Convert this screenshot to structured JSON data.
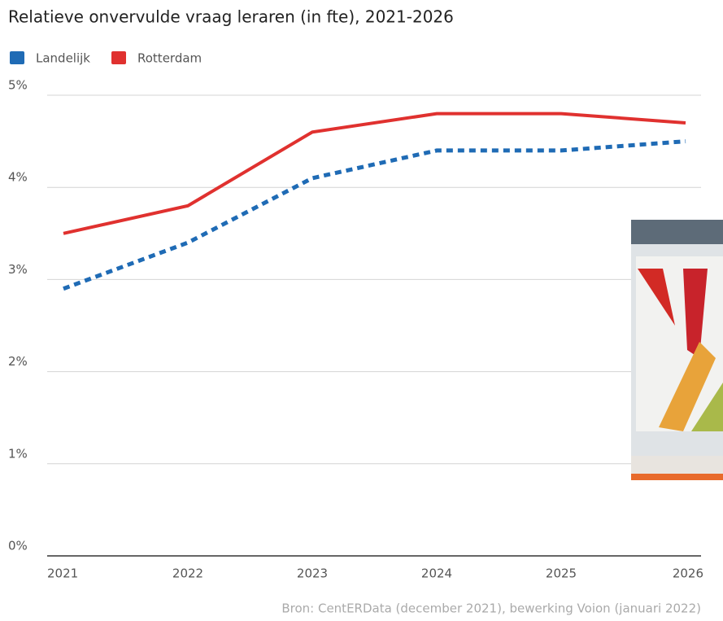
{
  "chart_data": {
    "type": "line",
    "title": "Relatieve onvervulde vraag leraren (in fte), 2021-2026",
    "categories": [
      "2021",
      "2022",
      "2023",
      "2024",
      "2025",
      "2026"
    ],
    "series": [
      {
        "name": "Landelijk",
        "color": "#1f6bb5",
        "dashed": true,
        "values": [
          2.9,
          3.4,
          4.1,
          4.4,
          4.4,
          4.5
        ]
      },
      {
        "name": "Rotterdam",
        "color": "#e0312f",
        "dashed": false,
        "values": [
          3.5,
          3.8,
          4.6,
          4.8,
          4.8,
          4.7
        ]
      }
    ],
    "ylim": [
      0,
      5
    ],
    "yticks": [
      {
        "value": 0,
        "label": "0%"
      },
      {
        "value": 1,
        "label": "1%"
      },
      {
        "value": 2,
        "label": "2%"
      },
      {
        "value": 3,
        "label": "3%"
      },
      {
        "value": 4,
        "label": "4%"
      },
      {
        "value": 5,
        "label": "5%"
      }
    ],
    "grid": true,
    "source": "Bron:  CentERData (december 2021), bewerking Voion (januari 2022)"
  }
}
